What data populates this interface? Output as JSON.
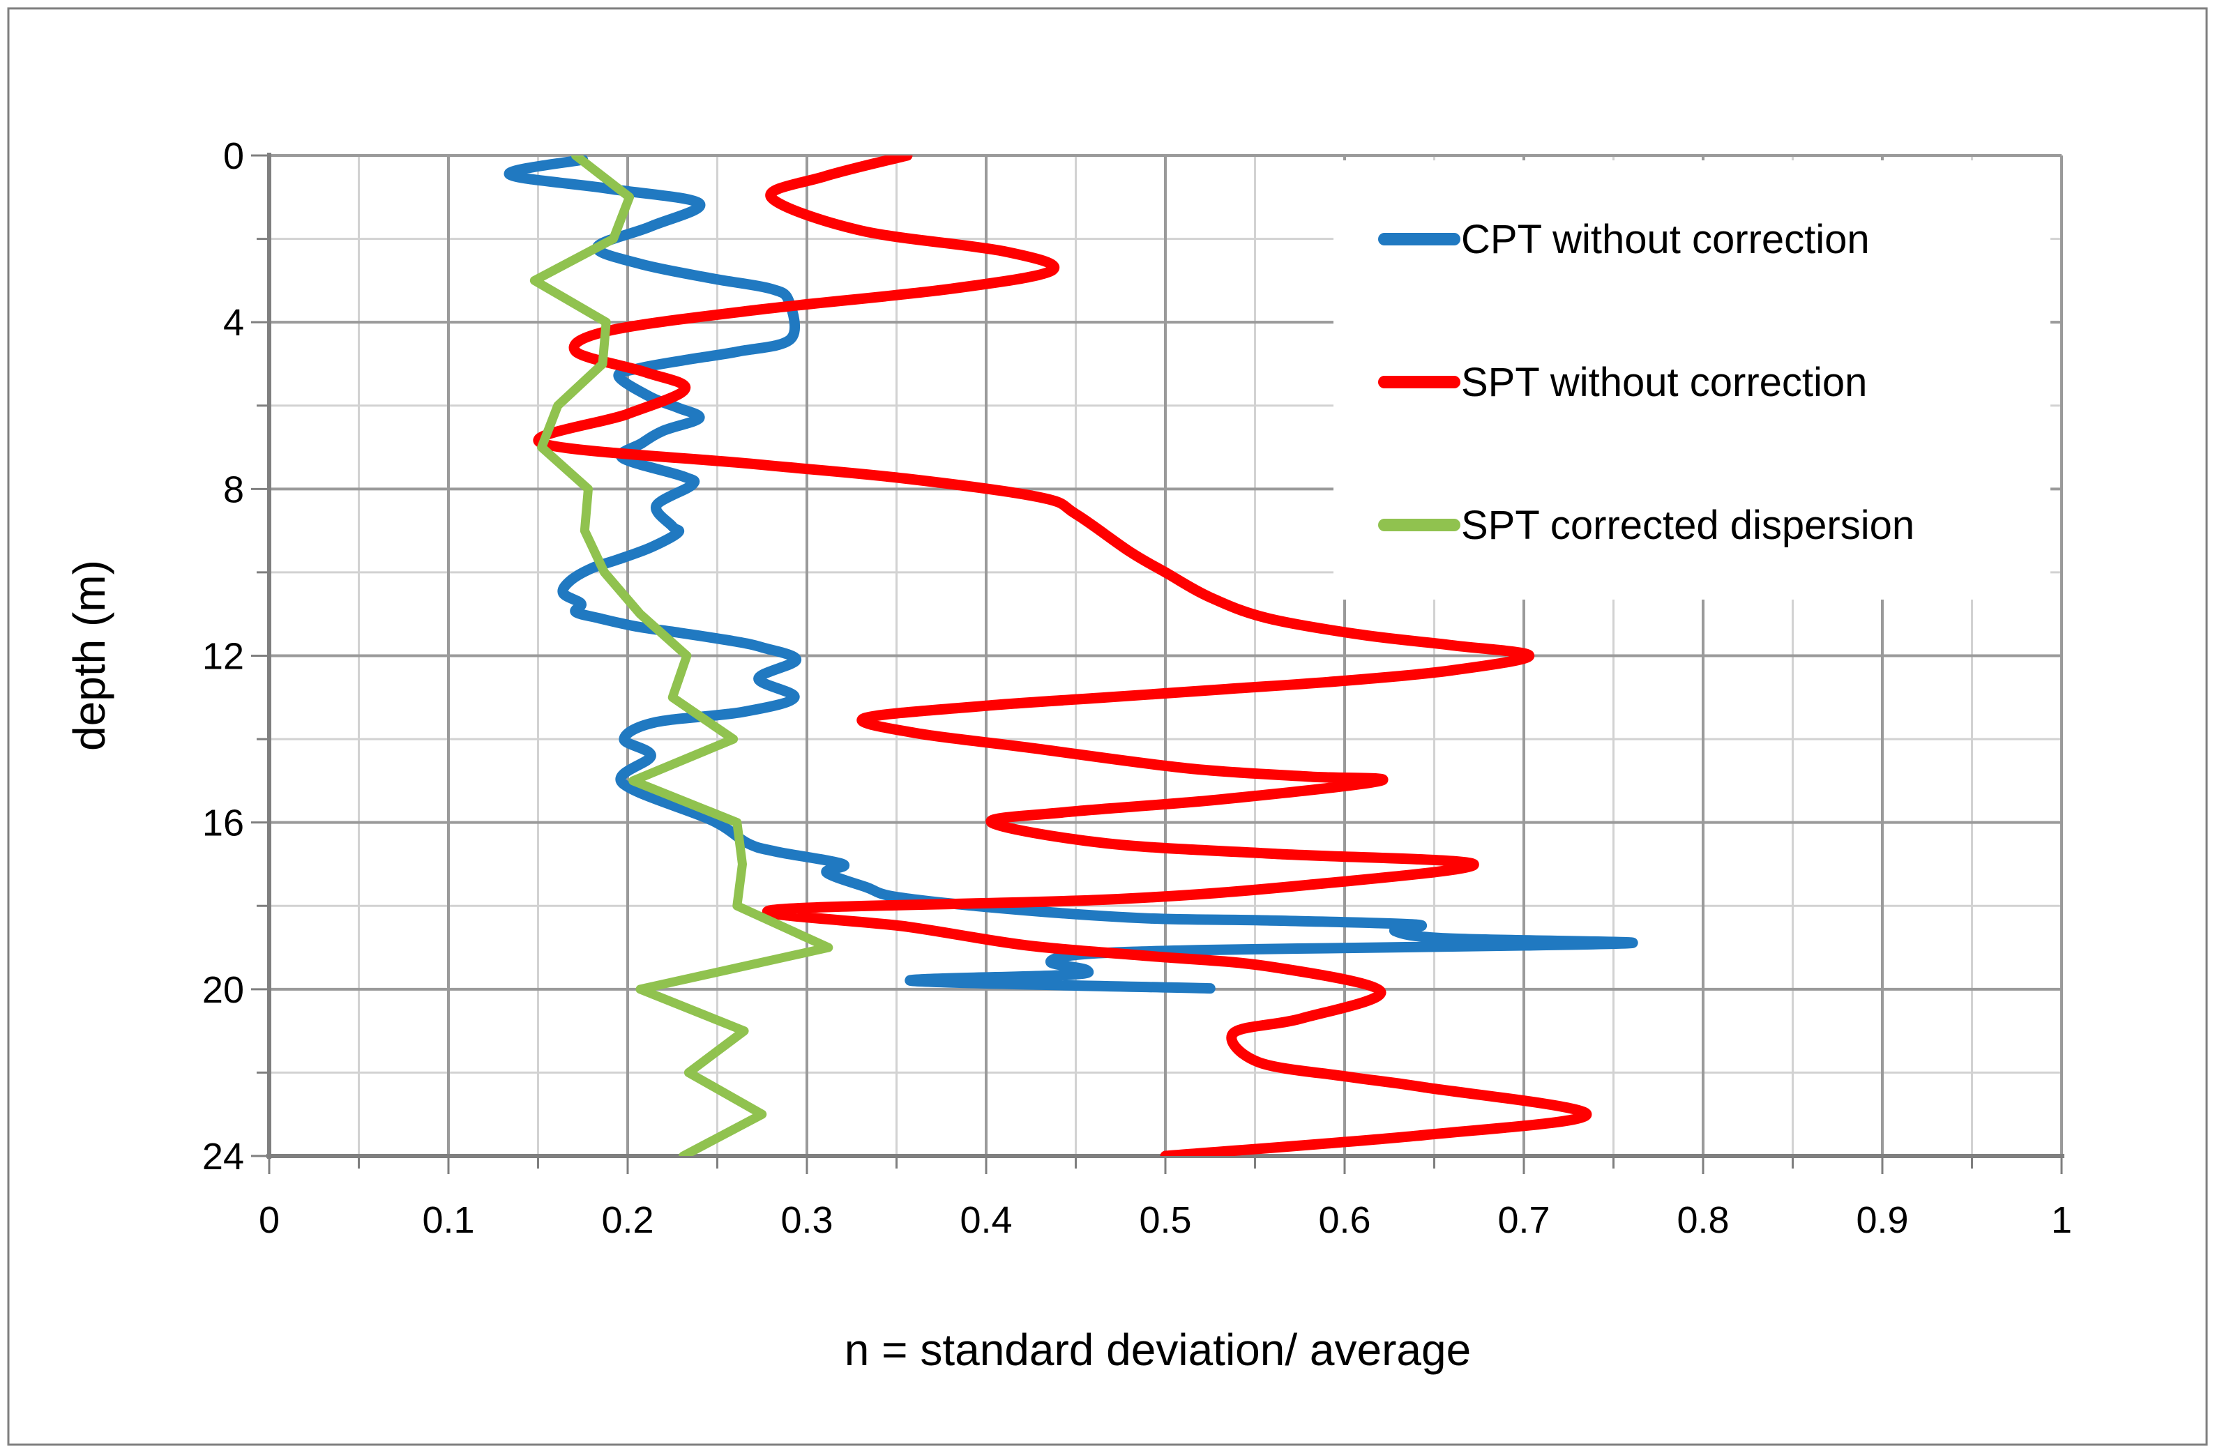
{
  "figure": {
    "background": "#ffffff",
    "border_color": "#7f7f7f"
  },
  "axes": {
    "x_title": "n = standard deviation/ average",
    "y_title": "depth  (m)",
    "x_tick_labels": [
      "0",
      "0.1",
      "0.2",
      "0.3",
      "0.4",
      "0.5",
      "0.6",
      "0.7",
      "0.8",
      "0.9",
      "1"
    ],
    "x_tick_values": [
      0,
      0.1,
      0.2,
      0.3,
      0.4,
      0.5,
      0.6,
      0.7,
      0.8,
      0.9,
      1
    ],
    "y_tick_labels": [
      "0",
      "4",
      "8",
      "12",
      "16",
      "20",
      "24"
    ],
    "y_tick_values": [
      0,
      4,
      8,
      12,
      16,
      20,
      24
    ]
  },
  "legend": {
    "entries": [
      {
        "label": "CPT without correction",
        "color": "#2079C1"
      },
      {
        "label": "SPT without correction",
        "color": "#FF0000"
      },
      {
        "label": "SPT corrected dispersion",
        "color": "#90C24F"
      }
    ]
  },
  "chart_data": {
    "type": "line",
    "title": "",
    "xlabel": "n = standard deviation/ average",
    "ylabel": "depth  (m)",
    "xlim": [
      0,
      1
    ],
    "ylim": [
      0,
      24
    ],
    "y_inverted": true,
    "grid": {
      "minor_x_step": 0.05,
      "major_x_step": 0.1,
      "minor_y_step": 2,
      "major_y_step": 4,
      "minor_color": "#d2d2d2",
      "major_color": "#9a9a9a",
      "axis_color": "#7f7f7f"
    },
    "legend_position": "upper-right-overlay",
    "series": [
      {
        "name": "CPT without correction",
        "color": "#2079C1",
        "width": 15,
        "smooth": true,
        "points_depth_value": [
          [
            0.1,
            0.175
          ],
          [
            0.45,
            0.134
          ],
          [
            0.8,
            0.19
          ],
          [
            1.15,
            0.24
          ],
          [
            1.7,
            0.213
          ],
          [
            2.2,
            0.183
          ],
          [
            2.6,
            0.207
          ],
          [
            2.95,
            0.247
          ],
          [
            3.2,
            0.28
          ],
          [
            3.5,
            0.29
          ],
          [
            4.4,
            0.291
          ],
          [
            4.7,
            0.262
          ],
          [
            4.9,
            0.233
          ],
          [
            5.1,
            0.207
          ],
          [
            5.3,
            0.195
          ],
          [
            5.8,
            0.213
          ],
          [
            6.05,
            0.228
          ],
          [
            6.3,
            0.24
          ],
          [
            6.6,
            0.22
          ],
          [
            6.9,
            0.208
          ],
          [
            7.25,
            0.197
          ],
          [
            7.7,
            0.231
          ],
          [
            7.9,
            0.236
          ],
          [
            8.4,
            0.216
          ],
          [
            8.9,
            0.225
          ],
          [
            9.05,
            0.228
          ],
          [
            9.4,
            0.213
          ],
          [
            9.7,
            0.194
          ],
          [
            9.9,
            0.18
          ],
          [
            10.2,
            0.168
          ],
          [
            10.5,
            0.164
          ],
          [
            10.75,
            0.174
          ],
          [
            10.95,
            0.171
          ],
          [
            11.1,
            0.184
          ],
          [
            11.3,
            0.205
          ],
          [
            11.45,
            0.229
          ],
          [
            11.65,
            0.259
          ],
          [
            11.8,
            0.275
          ],
          [
            12.1,
            0.294
          ],
          [
            12.55,
            0.273
          ],
          [
            13.0,
            0.293
          ],
          [
            13.35,
            0.264
          ],
          [
            13.6,
            0.215
          ],
          [
            14.0,
            0.198
          ],
          [
            14.4,
            0.213
          ],
          [
            15.05,
            0.197
          ],
          [
            15.95,
            0.247
          ],
          [
            16.5,
            0.267
          ],
          [
            16.7,
            0.283
          ],
          [
            17.0,
            0.32
          ],
          [
            17.2,
            0.311
          ],
          [
            17.55,
            0.333
          ],
          [
            17.8,
            0.352
          ],
          [
            18.1,
            0.42
          ],
          [
            18.3,
            0.49
          ],
          [
            18.35,
            0.557
          ],
          [
            18.45,
            0.64
          ],
          [
            18.6,
            0.628
          ],
          [
            18.78,
            0.657
          ],
          [
            18.88,
            0.76
          ],
          [
            18.95,
            0.7
          ],
          [
            19.0,
            0.62
          ],
          [
            19.06,
            0.52
          ],
          [
            19.16,
            0.454
          ],
          [
            19.35,
            0.436
          ],
          [
            19.54,
            0.456
          ],
          [
            19.66,
            0.444
          ],
          [
            19.8,
            0.359
          ],
          [
            19.98,
            0.525
          ]
        ]
      },
      {
        "name": "SPT without correction",
        "color": "#FF0000",
        "width": 15,
        "smooth": true,
        "points_depth_value": [
          [
            0.0,
            0.356
          ],
          [
            0.5,
            0.31
          ],
          [
            1.0,
            0.28
          ],
          [
            1.8,
            0.33
          ],
          [
            2.3,
            0.41
          ],
          [
            2.75,
            0.437
          ],
          [
            3.2,
            0.38
          ],
          [
            3.7,
            0.273
          ],
          [
            4.2,
            0.19
          ],
          [
            4.7,
            0.171
          ],
          [
            5.2,
            0.21
          ],
          [
            5.6,
            0.232
          ],
          [
            6.2,
            0.2
          ],
          [
            6.9,
            0.152
          ],
          [
            7.4,
            0.27
          ],
          [
            7.75,
            0.355
          ],
          [
            8.2,
            0.43
          ],
          [
            8.6,
            0.45
          ],
          [
            9.5,
            0.48
          ],
          [
            10.0,
            0.5
          ],
          [
            10.6,
            0.525
          ],
          [
            11.1,
            0.557
          ],
          [
            11.5,
            0.61
          ],
          [
            11.75,
            0.66
          ],
          [
            12.0,
            0.703
          ],
          [
            12.35,
            0.66
          ],
          [
            12.6,
            0.6
          ],
          [
            12.8,
            0.534
          ],
          [
            13.0,
            0.467
          ],
          [
            13.2,
            0.4
          ],
          [
            13.5,
            0.332
          ],
          [
            13.85,
            0.36
          ],
          [
            14.2,
            0.423
          ],
          [
            14.7,
            0.512
          ],
          [
            14.9,
            0.58
          ],
          [
            15.0,
            0.62
          ],
          [
            15.45,
            0.53
          ],
          [
            15.75,
            0.445
          ],
          [
            16.0,
            0.403
          ],
          [
            16.5,
            0.467
          ],
          [
            16.75,
            0.56
          ],
          [
            17.0,
            0.672
          ],
          [
            17.5,
            0.579
          ],
          [
            17.85,
            0.467
          ],
          [
            18.1,
            0.281
          ],
          [
            18.5,
            0.356
          ],
          [
            18.95,
            0.423
          ],
          [
            19.2,
            0.49
          ],
          [
            19.45,
            0.557
          ],
          [
            20.05,
            0.62
          ],
          [
            20.7,
            0.576
          ],
          [
            21.05,
            0.538
          ],
          [
            21.75,
            0.552
          ],
          [
            22.1,
            0.602
          ],
          [
            22.35,
            0.644
          ],
          [
            23.0,
            0.735
          ],
          [
            23.5,
            0.644
          ],
          [
            24.0,
            0.5
          ]
        ]
      },
      {
        "name": "SPT corrected dispersion",
        "color": "#90C24F",
        "width": 13,
        "smooth": false,
        "points_depth_value": [
          [
            0.0,
            0.171
          ],
          [
            1.0,
            0.201
          ],
          [
            2.0,
            0.192
          ],
          [
            3.0,
            0.148
          ],
          [
            4.0,
            0.188
          ],
          [
            5.0,
            0.186
          ],
          [
            6.0,
            0.161
          ],
          [
            7.0,
            0.152
          ],
          [
            8.0,
            0.178
          ],
          [
            9.0,
            0.176
          ],
          [
            10.0,
            0.187
          ],
          [
            11.0,
            0.207
          ],
          [
            12.0,
            0.233
          ],
          [
            13.0,
            0.225
          ],
          [
            14.0,
            0.259
          ],
          [
            15.0,
            0.203
          ],
          [
            16.0,
            0.261
          ],
          [
            17.0,
            0.264
          ],
          [
            18.0,
            0.261
          ],
          [
            19.0,
            0.312
          ],
          [
            20.0,
            0.207
          ],
          [
            21.0,
            0.265
          ],
          [
            22.0,
            0.234
          ],
          [
            23.0,
            0.275
          ],
          [
            24.0,
            0.231
          ]
        ]
      }
    ]
  }
}
